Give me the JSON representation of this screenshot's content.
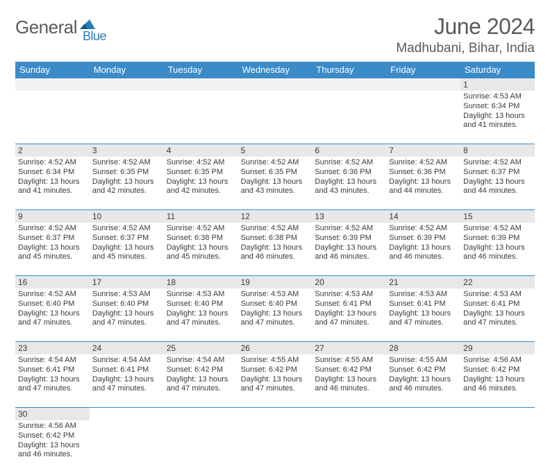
{
  "logo": {
    "general": "General",
    "blue": "Blue"
  },
  "title": "June 2024",
  "location": "Madhubani, Bihar, India",
  "dayHeaders": [
    "Sunday",
    "Monday",
    "Tuesday",
    "Wednesday",
    "Thursday",
    "Friday",
    "Saturday"
  ],
  "colors": {
    "headerBlue": "#3b8bc9",
    "logoBlue": "#2a7ab8",
    "logoGrey": "#5a5a5a",
    "grey": "#e8e8e8",
    "text": "#3a3a3a"
  },
  "weeks": [
    {
      "numbers": [
        "",
        "",
        "",
        "",
        "",
        "",
        "1"
      ],
      "cells": [
        null,
        null,
        null,
        null,
        null,
        null,
        {
          "sunrise": "Sunrise: 4:53 AM",
          "sunset": "Sunset: 6:34 PM",
          "daylight": "Daylight: 13 hours and 41 minutes."
        }
      ]
    },
    {
      "numbers": [
        "2",
        "3",
        "4",
        "5",
        "6",
        "7",
        "8"
      ],
      "cells": [
        {
          "sunrise": "Sunrise: 4:52 AM",
          "sunset": "Sunset: 6:34 PM",
          "daylight": "Daylight: 13 hours and 41 minutes."
        },
        {
          "sunrise": "Sunrise: 4:52 AM",
          "sunset": "Sunset: 6:35 PM",
          "daylight": "Daylight: 13 hours and 42 minutes."
        },
        {
          "sunrise": "Sunrise: 4:52 AM",
          "sunset": "Sunset: 6:35 PM",
          "daylight": "Daylight: 13 hours and 42 minutes."
        },
        {
          "sunrise": "Sunrise: 4:52 AM",
          "sunset": "Sunset: 6:35 PM",
          "daylight": "Daylight: 13 hours and 43 minutes."
        },
        {
          "sunrise": "Sunrise: 4:52 AM",
          "sunset": "Sunset: 6:36 PM",
          "daylight": "Daylight: 13 hours and 43 minutes."
        },
        {
          "sunrise": "Sunrise: 4:52 AM",
          "sunset": "Sunset: 6:36 PM",
          "daylight": "Daylight: 13 hours and 44 minutes."
        },
        {
          "sunrise": "Sunrise: 4:52 AM",
          "sunset": "Sunset: 6:37 PM",
          "daylight": "Daylight: 13 hours and 44 minutes."
        }
      ]
    },
    {
      "numbers": [
        "9",
        "10",
        "11",
        "12",
        "13",
        "14",
        "15"
      ],
      "cells": [
        {
          "sunrise": "Sunrise: 4:52 AM",
          "sunset": "Sunset: 6:37 PM",
          "daylight": "Daylight: 13 hours and 45 minutes."
        },
        {
          "sunrise": "Sunrise: 4:52 AM",
          "sunset": "Sunset: 6:37 PM",
          "daylight": "Daylight: 13 hours and 45 minutes."
        },
        {
          "sunrise": "Sunrise: 4:52 AM",
          "sunset": "Sunset: 6:38 PM",
          "daylight": "Daylight: 13 hours and 45 minutes."
        },
        {
          "sunrise": "Sunrise: 4:52 AM",
          "sunset": "Sunset: 6:38 PM",
          "daylight": "Daylight: 13 hours and 46 minutes."
        },
        {
          "sunrise": "Sunrise: 4:52 AM",
          "sunset": "Sunset: 6:39 PM",
          "daylight": "Daylight: 13 hours and 46 minutes."
        },
        {
          "sunrise": "Sunrise: 4:52 AM",
          "sunset": "Sunset: 6:39 PM",
          "daylight": "Daylight: 13 hours and 46 minutes."
        },
        {
          "sunrise": "Sunrise: 4:52 AM",
          "sunset": "Sunset: 6:39 PM",
          "daylight": "Daylight: 13 hours and 46 minutes."
        }
      ]
    },
    {
      "numbers": [
        "16",
        "17",
        "18",
        "19",
        "20",
        "21",
        "22"
      ],
      "cells": [
        {
          "sunrise": "Sunrise: 4:52 AM",
          "sunset": "Sunset: 6:40 PM",
          "daylight": "Daylight: 13 hours and 47 minutes."
        },
        {
          "sunrise": "Sunrise: 4:53 AM",
          "sunset": "Sunset: 6:40 PM",
          "daylight": "Daylight: 13 hours and 47 minutes."
        },
        {
          "sunrise": "Sunrise: 4:53 AM",
          "sunset": "Sunset: 6:40 PM",
          "daylight": "Daylight: 13 hours and 47 minutes."
        },
        {
          "sunrise": "Sunrise: 4:53 AM",
          "sunset": "Sunset: 6:40 PM",
          "daylight": "Daylight: 13 hours and 47 minutes."
        },
        {
          "sunrise": "Sunrise: 4:53 AM",
          "sunset": "Sunset: 6:41 PM",
          "daylight": "Daylight: 13 hours and 47 minutes."
        },
        {
          "sunrise": "Sunrise: 4:53 AM",
          "sunset": "Sunset: 6:41 PM",
          "daylight": "Daylight: 13 hours and 47 minutes."
        },
        {
          "sunrise": "Sunrise: 4:53 AM",
          "sunset": "Sunset: 6:41 PM",
          "daylight": "Daylight: 13 hours and 47 minutes."
        }
      ]
    },
    {
      "numbers": [
        "23",
        "24",
        "25",
        "26",
        "27",
        "28",
        "29"
      ],
      "cells": [
        {
          "sunrise": "Sunrise: 4:54 AM",
          "sunset": "Sunset: 6:41 PM",
          "daylight": "Daylight: 13 hours and 47 minutes."
        },
        {
          "sunrise": "Sunrise: 4:54 AM",
          "sunset": "Sunset: 6:41 PM",
          "daylight": "Daylight: 13 hours and 47 minutes."
        },
        {
          "sunrise": "Sunrise: 4:54 AM",
          "sunset": "Sunset: 6:42 PM",
          "daylight": "Daylight: 13 hours and 47 minutes."
        },
        {
          "sunrise": "Sunrise: 4:55 AM",
          "sunset": "Sunset: 6:42 PM",
          "daylight": "Daylight: 13 hours and 47 minutes."
        },
        {
          "sunrise": "Sunrise: 4:55 AM",
          "sunset": "Sunset: 6:42 PM",
          "daylight": "Daylight: 13 hours and 46 minutes."
        },
        {
          "sunrise": "Sunrise: 4:55 AM",
          "sunset": "Sunset: 6:42 PM",
          "daylight": "Daylight: 13 hours and 46 minutes."
        },
        {
          "sunrise": "Sunrise: 4:56 AM",
          "sunset": "Sunset: 6:42 PM",
          "daylight": "Daylight: 13 hours and 46 minutes."
        }
      ]
    },
    {
      "numbers": [
        "30",
        "",
        "",
        "",
        "",
        "",
        ""
      ],
      "cells": [
        {
          "sunrise": "Sunrise: 4:56 AM",
          "sunset": "Sunset: 6:42 PM",
          "daylight": "Daylight: 13 hours and 46 minutes."
        },
        null,
        null,
        null,
        null,
        null,
        null
      ]
    }
  ]
}
